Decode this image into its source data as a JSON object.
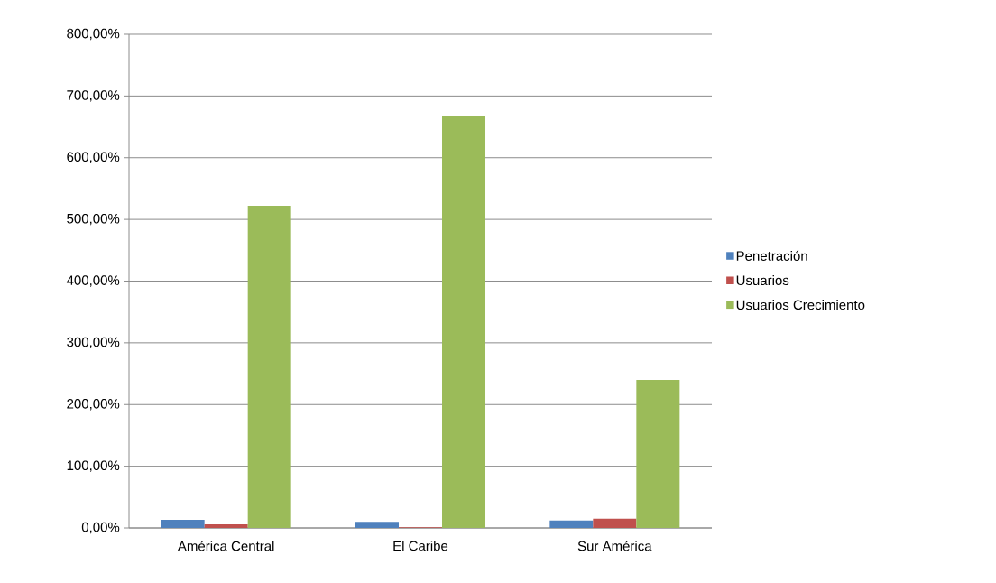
{
  "chart_data": {
    "type": "bar",
    "categories": [
      "América Central",
      "El Caribe",
      "Sur América"
    ],
    "series": [
      {
        "name": "Penetración",
        "color": "#4f81bd",
        "values": [
          13,
          10,
          12
        ]
      },
      {
        "name": "Usuarios",
        "color": "#c0504d",
        "values": [
          6,
          1,
          15
        ]
      },
      {
        "name": "Usuarios Crecimiento",
        "color": "#9bbb59",
        "values": [
          522,
          668,
          240
        ]
      }
    ],
    "ylim": [
      0,
      800
    ],
    "yticks": [
      {
        "value": 0,
        "label": "0,00%"
      },
      {
        "value": 100,
        "label": "100,00%"
      },
      {
        "value": 200,
        "label": "200,00%"
      },
      {
        "value": 300,
        "label": "300,00%"
      },
      {
        "value": 400,
        "label": "400,00%"
      },
      {
        "value": 500,
        "label": "500,00%"
      },
      {
        "value": 600,
        "label": "600,00%"
      },
      {
        "value": 700,
        "label": "700,00%"
      },
      {
        "value": 800,
        "label": "800,00%"
      }
    ],
    "grid": "y",
    "legend": "right"
  }
}
